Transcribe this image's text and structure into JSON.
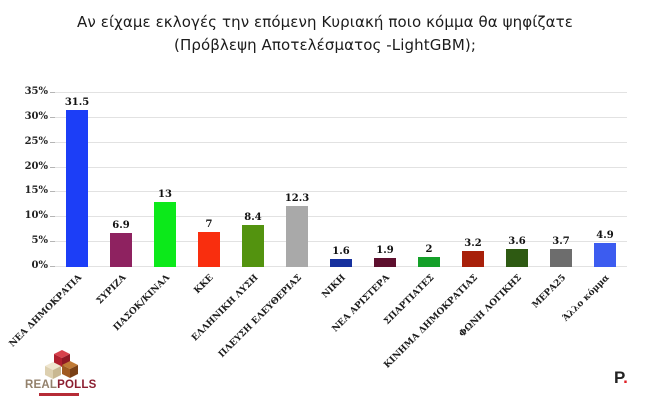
{
  "title": {
    "line1": "Αν είχαμε εκλογές την επόμενη Κυριακή ποιο κόμμα θα ψηφίζατε",
    "line2": "(Πρόβλεψη Αποτελέσματος -LightGBM);"
  },
  "chart_data": {
    "type": "bar",
    "title": "Αν είχαμε εκλογές την επόμενη Κυριακή ποιο κόμμα θα ψηφίζατε (Πρόβλεψη Αποτελέσματος -LightGBM);",
    "categories": [
      "ΝΕΑ ΔΗΜΟΚΡΑΤΙΑ",
      "ΣΥΡΙΖΑ",
      "ΠΑΣΟΚ/ΚΙΝΑΛ",
      "ΚΚΕ",
      "ΕΛΛΗΝΙΚΗ ΛΥΣΗ",
      "ΠΛΕΥΣΗ ΕΛΕΥΘΕΡΙΑΣ",
      "ΝΙΚΗ",
      "ΝΕΑ ΑΡΙΣΤΕΡΑ",
      "ΣΠΑΡΤΙΑΤΕΣ",
      "ΚΙΝΗΜΑ ΔΗΜΟΚΡΑΤΙΑΣ",
      "ΦΩΝΗ ΛΟΓΙΚΗΣ",
      "ΜΕΡΑ25",
      "Άλλο κόμμα"
    ],
    "values": [
      31.5,
      6.9,
      13,
      7,
      8.4,
      12.3,
      1.6,
      1.9,
      2,
      3.2,
      3.6,
      3.7,
      4.9
    ],
    "value_labels": [
      "31.5",
      "6.9",
      "13",
      "7",
      "8.4",
      "12.3",
      "1.6",
      "1.9",
      "2",
      "3.2",
      "3.6",
      "3.7",
      "4.9"
    ],
    "bar_colors": [
      "#1c3ef7",
      "#8e2260",
      "#0ce91a",
      "#f92e0e",
      "#53930f",
      "#a9a9a9",
      "#16309e",
      "#5e0f2e",
      "#14a029",
      "#a8200a",
      "#2e5a12",
      "#6d6d6d",
      "#3c5cf0"
    ],
    "yticks": [
      "0%",
      "5%",
      "10%",
      "15%",
      "20%",
      "25%",
      "30%",
      "35%"
    ],
    "ylim": [
      0,
      35
    ],
    "grid": true,
    "grid_color": "#e2e2e2",
    "xlabel": "",
    "ylabel": "",
    "legend": "none",
    "background": "#ffffff"
  },
  "branding": {
    "realpolls": {
      "real": "REAL",
      "polls": "POLLS"
    },
    "p_logo": {
      "letter": "P",
      "dot": "."
    }
  }
}
